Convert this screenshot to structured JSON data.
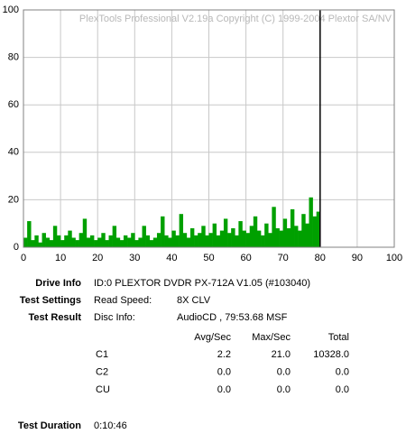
{
  "chart_data": {
    "type": "bar",
    "watermark": "PlexTools Professional V2.19a Copyright (C) 1999-2004 Plextor SA/NV",
    "x": [
      0,
      1,
      2,
      3,
      4,
      5,
      6,
      7,
      8,
      9,
      10,
      11,
      12,
      13,
      14,
      15,
      16,
      17,
      18,
      19,
      20,
      21,
      22,
      23,
      24,
      25,
      26,
      27,
      28,
      29,
      30,
      31,
      32,
      33,
      34,
      35,
      36,
      37,
      38,
      39,
      40,
      41,
      42,
      43,
      44,
      45,
      46,
      47,
      48,
      49,
      50,
      51,
      52,
      53,
      54,
      55,
      56,
      57,
      58,
      59,
      60,
      61,
      62,
      63,
      64,
      65,
      66,
      67,
      68,
      69,
      70,
      71,
      72,
      73,
      74,
      75,
      76,
      77,
      78,
      79
    ],
    "values": [
      4,
      11,
      3,
      5,
      2,
      6,
      4,
      3,
      9,
      5,
      3,
      5,
      7,
      4,
      3,
      6,
      12,
      4,
      5,
      3,
      4,
      6,
      3,
      5,
      9,
      4,
      3,
      5,
      4,
      6,
      3,
      4,
      9,
      5,
      3,
      4,
      6,
      13,
      5,
      4,
      7,
      5,
      14,
      6,
      4,
      8,
      5,
      6,
      9,
      5,
      6,
      10,
      5,
      7,
      12,
      6,
      8,
      5,
      11,
      7,
      6,
      9,
      13,
      7,
      5,
      10,
      6,
      17,
      8,
      7,
      12,
      8,
      16,
      9,
      7,
      14,
      10,
      21,
      13,
      15
    ],
    "color": "#00a000",
    "end_line_x": 80,
    "xlim": [
      0,
      100
    ],
    "xticks": [
      0,
      10,
      20,
      30,
      40,
      50,
      60,
      70,
      80,
      90,
      100
    ],
    "ylim": [
      0,
      100
    ],
    "yticks": [
      0,
      20,
      40,
      60,
      80,
      100
    ],
    "grid": true
  },
  "info": {
    "drive_info": {
      "label": "Drive Info",
      "value": "ID:0 PLEXTOR DVDR PX-712A V1.05 (#103040)"
    },
    "test_settings": {
      "label": "Test Settings",
      "field": "Read Speed:",
      "value": "8X CLV"
    },
    "test_result": {
      "label": "Test Result",
      "field": "Disc Info:",
      "value": "AudioCD , 79:53.68 MSF"
    },
    "table": {
      "columns": [
        "Avg/Sec",
        "Max/Sec",
        "Total"
      ],
      "rows": [
        [
          "C1",
          "2.2",
          "21.0",
          "10328.0"
        ],
        [
          "C2",
          "0.0",
          "0.0",
          "0.0"
        ],
        [
          "CU",
          "0.0",
          "0.0",
          "0.0"
        ]
      ]
    },
    "test_duration": {
      "label": "Test Duration",
      "value": "0:10:46"
    }
  }
}
